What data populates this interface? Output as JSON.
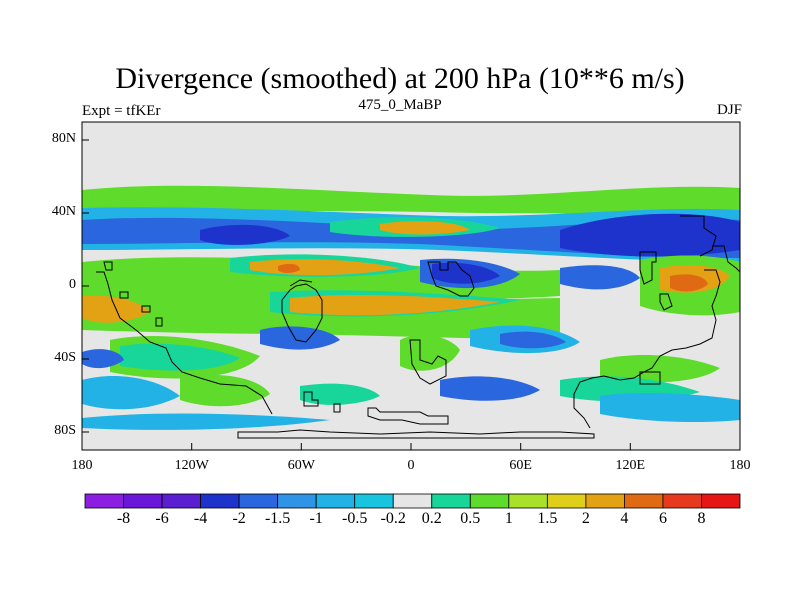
{
  "title": "Divergence (smoothed) at 200 hPa (10**6 m/s)",
  "left_label": "Expt = tfKEr",
  "center_label": "475_0_MaBP",
  "right_label": "DJF",
  "lat_ticks": [
    "80N",
    "40N",
    "0",
    "40S",
    "80S"
  ],
  "lon_ticks": [
    "180",
    "120W",
    "60W",
    "0",
    "60E",
    "120E",
    "180"
  ],
  "colorbar": {
    "labels": [
      "-8",
      "-6",
      "-4",
      "-2",
      "-1.5",
      "-1",
      "-0.5",
      "-0.2",
      "0.2",
      "0.5",
      "1",
      "1.5",
      "2",
      "4",
      "6",
      "8"
    ],
    "colors": [
      "#8b1ee0",
      "#6a17d9",
      "#5a1fd0",
      "#1e33cc",
      "#2a66dd",
      "#2f93e6",
      "#22b2e6",
      "#19c4df",
      "#e6e6e6",
      "#18d69a",
      "#5fdb2c",
      "#a8e02a",
      "#e0cf1a",
      "#e2a214",
      "#e06a14",
      "#e63a1e",
      "#e61616"
    ]
  },
  "colors": {
    "strong_neg": "#1e33cc",
    "mid_neg": "#2a66dd",
    "weak_neg": "#22b2e6",
    "neutral": "#e6e6e6",
    "weak_pos": "#18d69a",
    "mid_pos": "#5fdb2c",
    "strong_pos": "#e2a214",
    "max_pos": "#e06a14"
  }
}
